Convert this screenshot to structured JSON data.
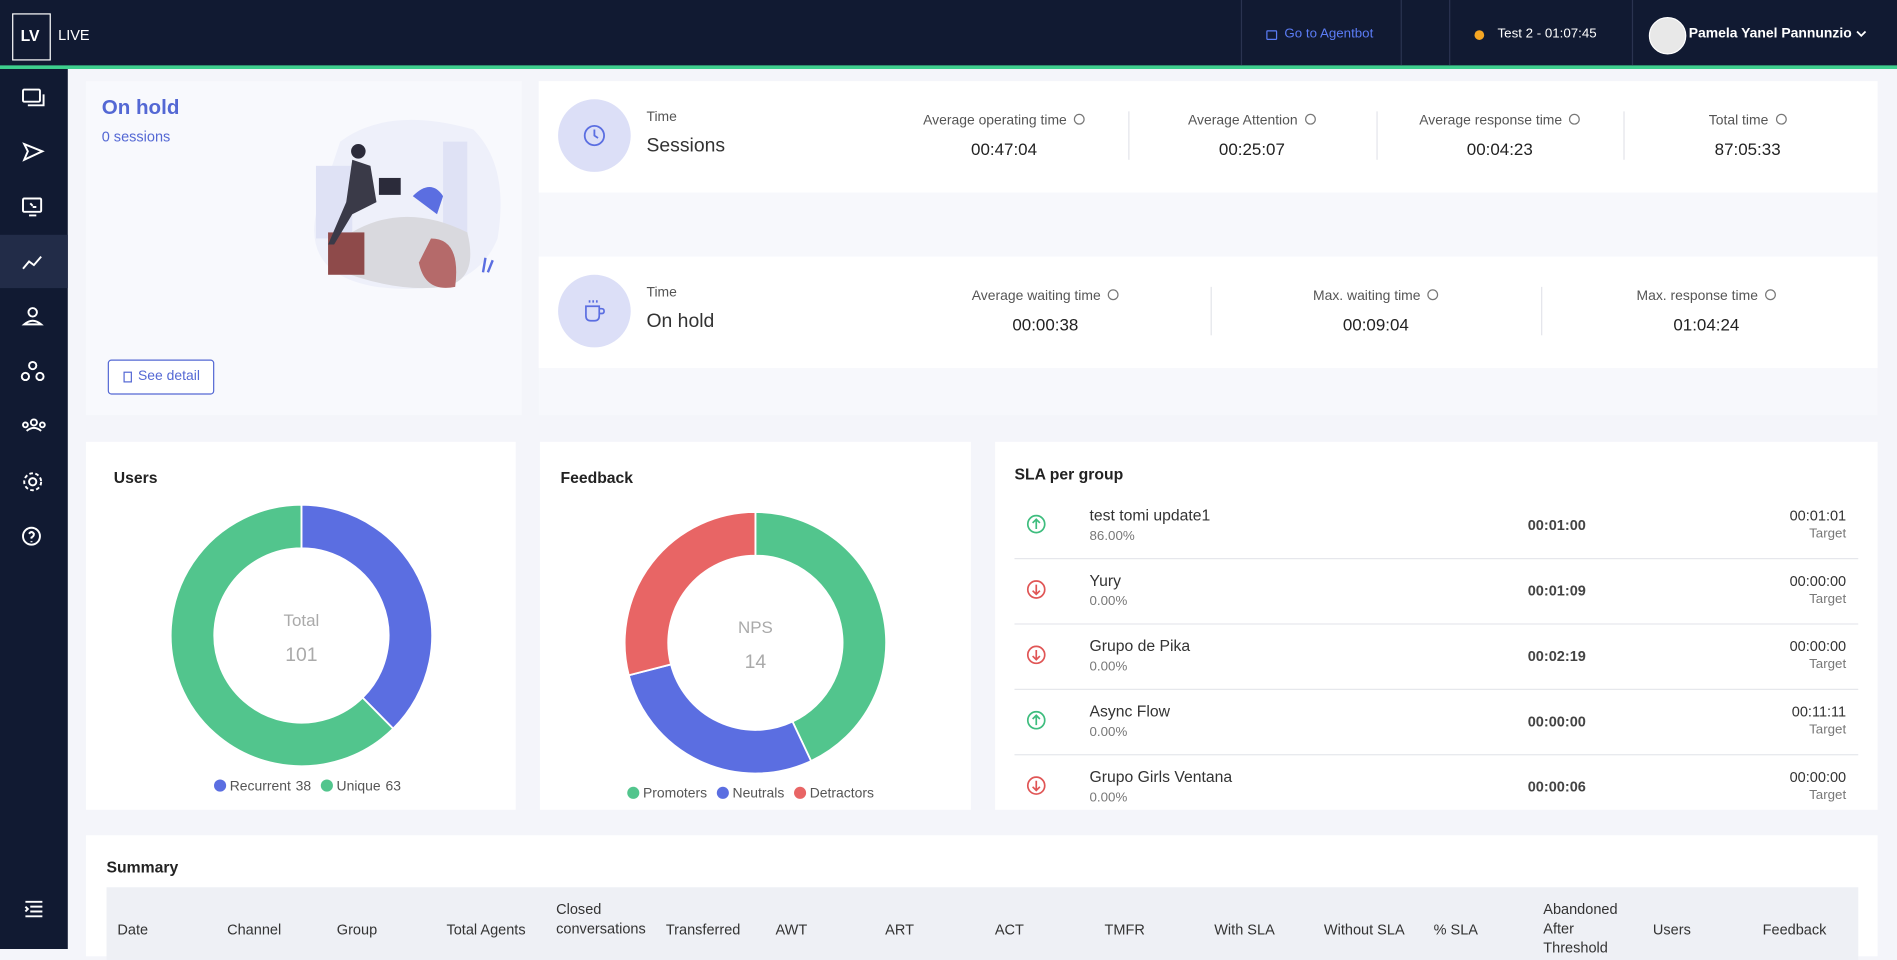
{
  "header": {
    "logo": "LV",
    "product": "LIVE",
    "agentbot_link": "Go to Agentbot",
    "status": "Test 2 - 01:07:45",
    "user_name": "Pamela Yanel Pannunzio"
  },
  "on_hold_card": {
    "title": "On hold",
    "subtitle": "0 sessions",
    "button": "See detail"
  },
  "stats": [
    {
      "label": "Time",
      "title": "Sessions",
      "metrics": [
        {
          "label": "Average operating time",
          "value": "00:47:04"
        },
        {
          "label": "Average Attention",
          "value": "00:25:07"
        },
        {
          "label": "Average response time",
          "value": "00:04:23"
        },
        {
          "label": "Total time",
          "value": "87:05:33"
        }
      ]
    },
    {
      "label": "Time",
      "title": "On hold",
      "metrics": [
        {
          "label": "Average waiting time",
          "value": "00:00:38"
        },
        {
          "label": "Max. waiting time",
          "value": "00:09:04"
        },
        {
          "label": "Max. response time",
          "value": "01:04:24"
        }
      ]
    }
  ],
  "chart_data": [
    {
      "type": "donut",
      "title": "Users",
      "center_label": "Total",
      "center_value": 101,
      "series": [
        {
          "name": "Recurrent",
          "value": 38,
          "color": "#5b6ee1"
        },
        {
          "name": "Unique",
          "value": 63,
          "color": "#52c58d"
        }
      ],
      "legend_shows_values": true
    },
    {
      "type": "donut",
      "title": "Feedback",
      "center_label": "NPS",
      "center_value": 14,
      "series": [
        {
          "name": "Promoters",
          "value": 43,
          "color": "#52c58d"
        },
        {
          "name": "Neutrals",
          "value": 28,
          "color": "#5b6ee1"
        },
        {
          "name": "Detractors",
          "value": 29,
          "color": "#e86565"
        }
      ],
      "legend_shows_values": false
    }
  ],
  "sla": {
    "title": "SLA per group",
    "target_label": "Target",
    "rows": [
      {
        "name": "test tomi update1",
        "percent": "86.00%",
        "time": "00:01:00",
        "target": "00:01:01",
        "trend": "up"
      },
      {
        "name": "Yury",
        "percent": "0.00%",
        "time": "00:01:09",
        "target": "00:00:00",
        "trend": "down"
      },
      {
        "name": "Grupo de Pika",
        "percent": "0.00%",
        "time": "00:02:19",
        "target": "00:00:00",
        "trend": "down"
      },
      {
        "name": "Async Flow",
        "percent": "0.00%",
        "time": "00:00:00",
        "target": "00:11:11",
        "trend": "up"
      },
      {
        "name": "Grupo Girls Ventana",
        "percent": "0.00%",
        "time": "00:00:06",
        "target": "00:00:00",
        "trend": "down"
      }
    ]
  },
  "summary": {
    "title": "Summary",
    "columns": [
      "Date",
      "Channel",
      "Group",
      "Total Agents",
      "Closed conversations",
      "Transferred",
      "AWT",
      "ART",
      "ACT",
      "TMFR",
      "With SLA",
      "Without SLA",
      "% SLA",
      "Abandoned After Threshold",
      "Users",
      "Feedback"
    ]
  }
}
